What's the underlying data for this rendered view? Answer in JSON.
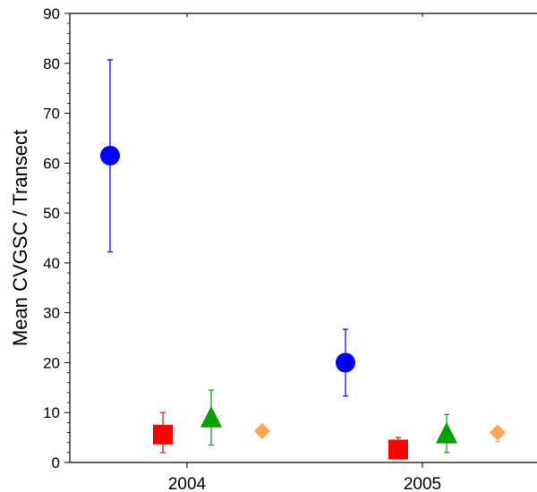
{
  "chart_data": {
    "type": "scatter",
    "title": "",
    "xlabel": "",
    "ylabel": "Mean CVGSC / Transect",
    "categories": [
      "2004",
      "2005"
    ],
    "ylim": [
      0,
      90
    ],
    "yticks": [
      0,
      10,
      20,
      30,
      40,
      50,
      60,
      70,
      80,
      90
    ],
    "grid": false,
    "legend": "none",
    "series": [
      {
        "marker": "circle",
        "color": "#0000ff",
        "points": [
          {
            "category": "2004",
            "value": 61.5,
            "error_low": 42.2,
            "error_high": 80.7
          },
          {
            "category": "2005",
            "value": 20.0,
            "error_low": 13.3,
            "error_high": 26.7
          }
        ]
      },
      {
        "marker": "square",
        "color": "#ff0000",
        "points": [
          {
            "category": "2004",
            "value": 5.6,
            "error_low": 2.0,
            "error_high": 10.0
          },
          {
            "category": "2005",
            "value": 2.6,
            "error_low": 1.0,
            "error_high": 5.0
          }
        ]
      },
      {
        "marker": "triangle",
        "color": "#00a000",
        "points": [
          {
            "category": "2004",
            "value": 9.0,
            "error_low": 3.5,
            "error_high": 14.5
          },
          {
            "category": "2005",
            "value": 5.8,
            "error_low": 2.0,
            "error_high": 9.6
          }
        ]
      },
      {
        "marker": "diamond",
        "color": "#ffa64d",
        "points": [
          {
            "category": "2004",
            "value": 6.3,
            "error_low": 6.3,
            "error_high": 6.3
          },
          {
            "category": "2005",
            "value": 6.0,
            "error_low": 4.2,
            "error_high": 7.0
          }
        ]
      }
    ]
  }
}
